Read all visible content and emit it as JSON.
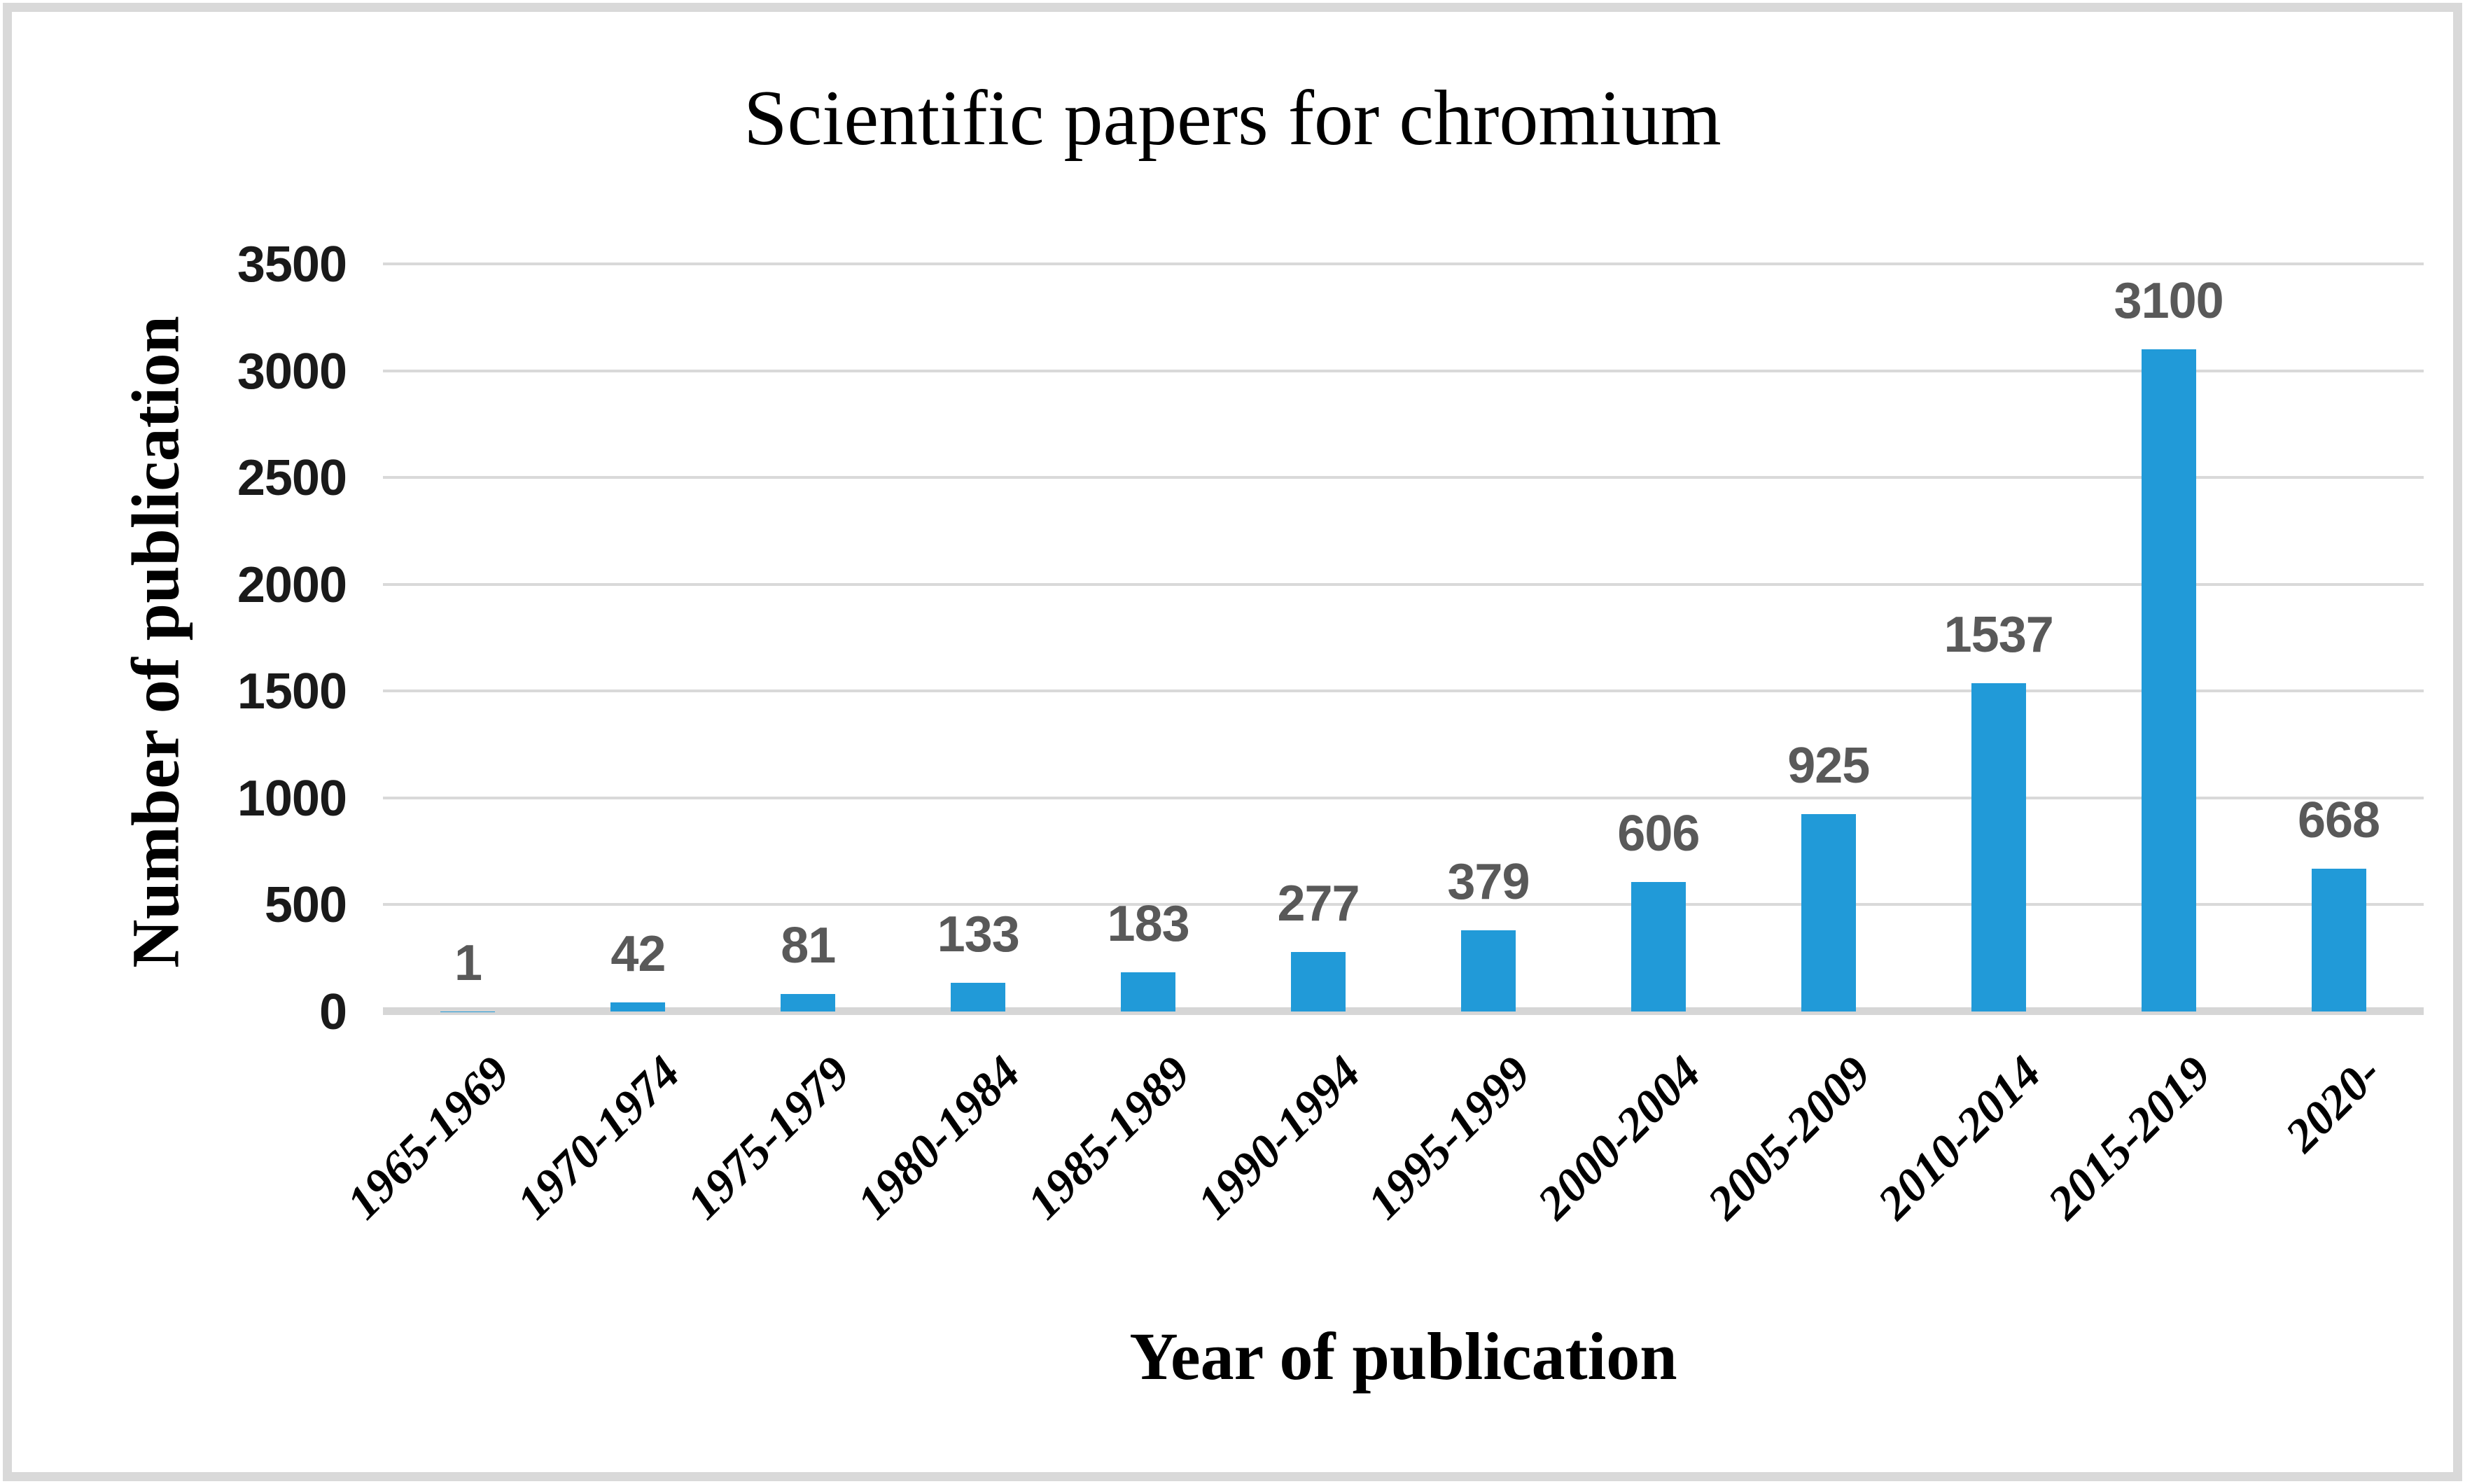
{
  "chart_data": {
    "type": "bar",
    "title": "Scientific papers for chromium",
    "xlabel": "Year of publication",
    "ylabel": "Number of publication",
    "categories": [
      "1965-1969",
      "1970-1974",
      "1975-1979",
      "1980-1984",
      "1985-1989",
      "1990-1994",
      "1995-1999",
      "2000-2004",
      "2005-2009",
      "2010-2014",
      "2015-2019",
      "2020-"
    ],
    "values": [
      1,
      42,
      81,
      133,
      183,
      277,
      379,
      606,
      925,
      1537,
      3100,
      668
    ],
    "data_labels": [
      "1",
      "42",
      "81",
      "133",
      "183",
      "277",
      "379",
      "606",
      "925",
      "1537",
      "3100",
      "668"
    ],
    "ylim": [
      0,
      3500
    ],
    "yticks": [
      0,
      500,
      1000,
      1500,
      2000,
      2500,
      3000,
      3500
    ],
    "grid": "horizontal",
    "legend": "none",
    "colors": {
      "bar": "#219AD8",
      "data_label": "#595959",
      "gridline": "#D9D9D9",
      "axis_line": "#D6D6D6",
      "text": "#000000",
      "frame_border": "#D9D9D9"
    }
  }
}
